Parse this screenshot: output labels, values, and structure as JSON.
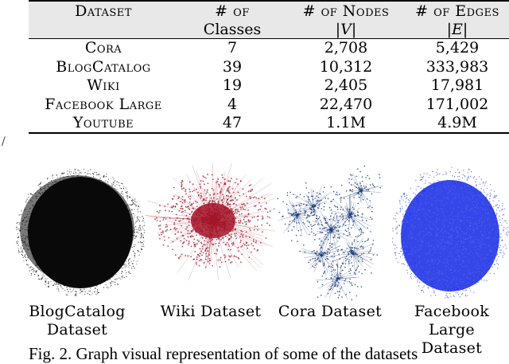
{
  "table": {
    "headers": [
      {
        "line1": "Dataset",
        "line2": ""
      },
      {
        "line1": "# of",
        "line2": "Classes"
      },
      {
        "line1": "# of Nodes",
        "line2": "|V|"
      },
      {
        "line1": "# of Edges",
        "line2": "|E|"
      }
    ],
    "rows": [
      {
        "dataset": "Cora",
        "classes": "7",
        "nodes": "2,708",
        "edges": "5,429"
      },
      {
        "dataset": "BlogCatalog",
        "classes": "39",
        "nodes": "10,312",
        "edges": "333,983"
      },
      {
        "dataset": "Wiki",
        "classes": "19",
        "nodes": "2,405",
        "edges": "17,981"
      },
      {
        "dataset": "Facebook Large",
        "classes": "4",
        "nodes": "22,470",
        "edges": "171,002"
      },
      {
        "dataset": "Youtube",
        "classes": "47",
        "nodes": "1.1M",
        "edges": "4.9M"
      }
    ]
  },
  "graphs": [
    {
      "label_line1": "BlogCatalog",
      "label_line2": "Dataset",
      "color": "#0a0a0a"
    },
    {
      "label_line1": "Wiki Dataset",
      "label_line2": "",
      "color": "#a3162a"
    },
    {
      "label_line1": "Cora Dataset",
      "label_line2": "",
      "color": "#1b3a78"
    },
    {
      "label_line1": "Facebook Large",
      "label_line2": "Dataset",
      "color": "#1f33e6"
    }
  ],
  "caption": "Fig. 2. Graph visual representation of some of the datasets",
  "stray_mark": "/"
}
